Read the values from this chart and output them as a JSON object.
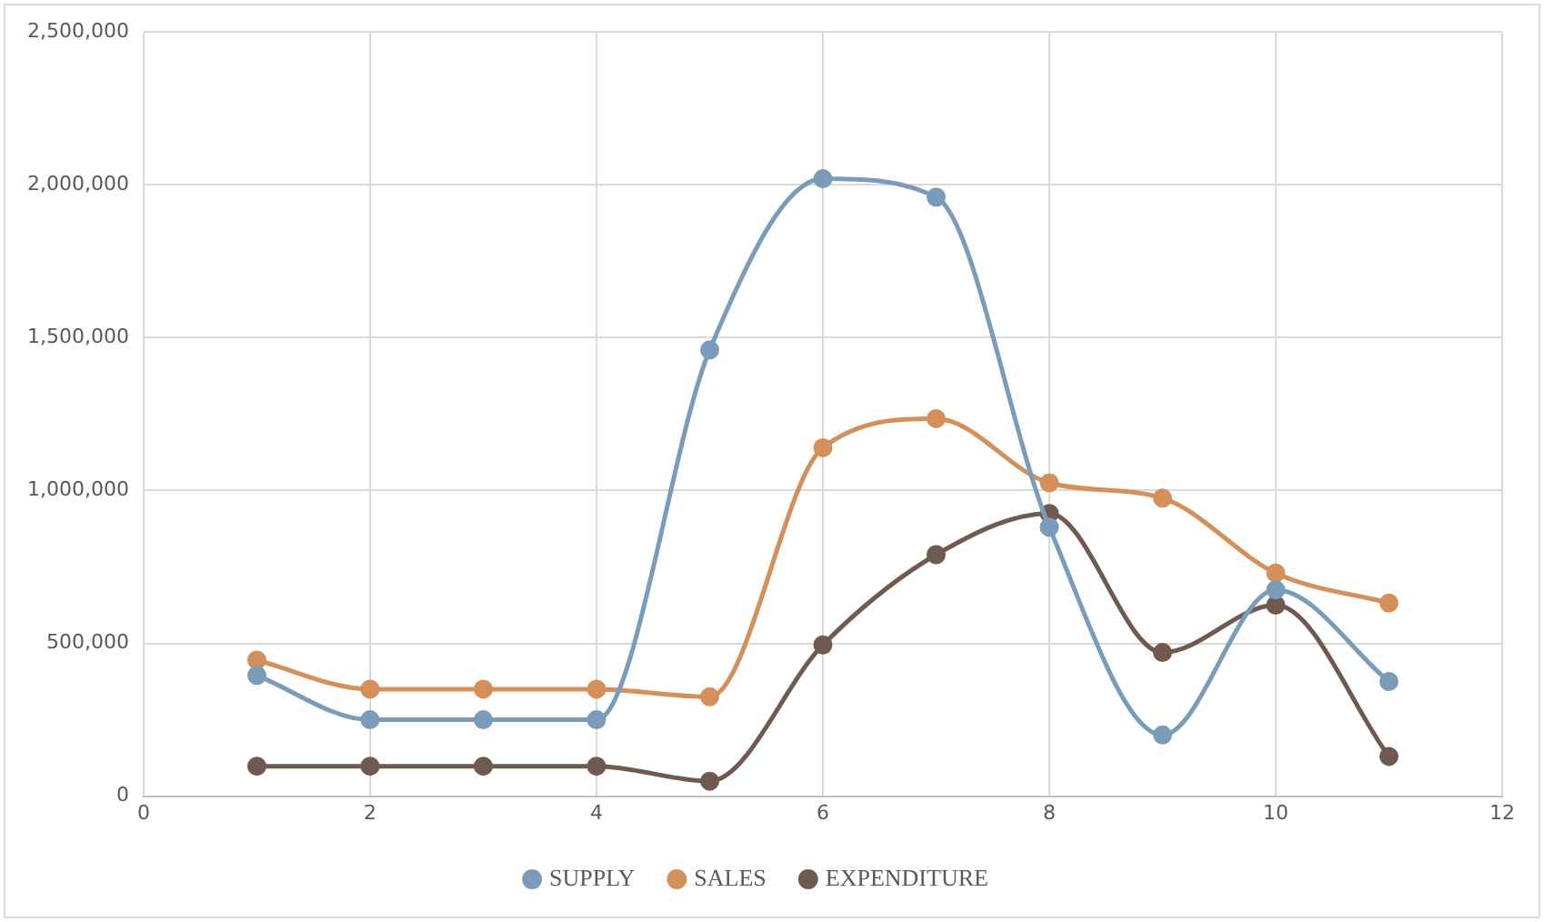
{
  "chart_data": {
    "type": "line",
    "x": [
      1,
      2,
      3,
      4,
      5,
      6,
      7,
      8,
      9,
      10,
      11
    ],
    "series": [
      {
        "name": "SUPPLY",
        "color": "#7a9cbb",
        "values": [
          395000,
          250000,
          250000,
          250000,
          1460000,
          2020000,
          1960000,
          880000,
          200000,
          675000,
          375000
        ]
      },
      {
        "name": "SALES",
        "color": "#d4905a",
        "values": [
          445000,
          350000,
          350000,
          350000,
          325000,
          1140000,
          1235000,
          1025000,
          975000,
          730000,
          632000
        ]
      },
      {
        "name": "EXPENDITURE",
        "color": "#6e5a4e",
        "values": [
          98000,
          98000,
          98000,
          98000,
          49000,
          495000,
          790000,
          925000,
          470000,
          625000,
          130000
        ]
      }
    ],
    "xlim": [
      0,
      12
    ],
    "xticks": [
      0,
      2,
      4,
      6,
      8,
      10,
      12
    ],
    "ylim": [
      0,
      2500000
    ],
    "yticks": [
      {
        "value": 0,
        "label": "0"
      },
      {
        "value": 500000,
        "label": "500,000"
      },
      {
        "value": 1000000,
        "label": "1,000,000"
      },
      {
        "value": 1500000,
        "label": "1,500,000"
      },
      {
        "value": 2000000,
        "label": "2,000,000"
      },
      {
        "value": 2500000,
        "label": "2,500,000"
      }
    ],
    "grid": true,
    "legend": "bottom",
    "marker": "circle",
    "line_style": "solid"
  }
}
